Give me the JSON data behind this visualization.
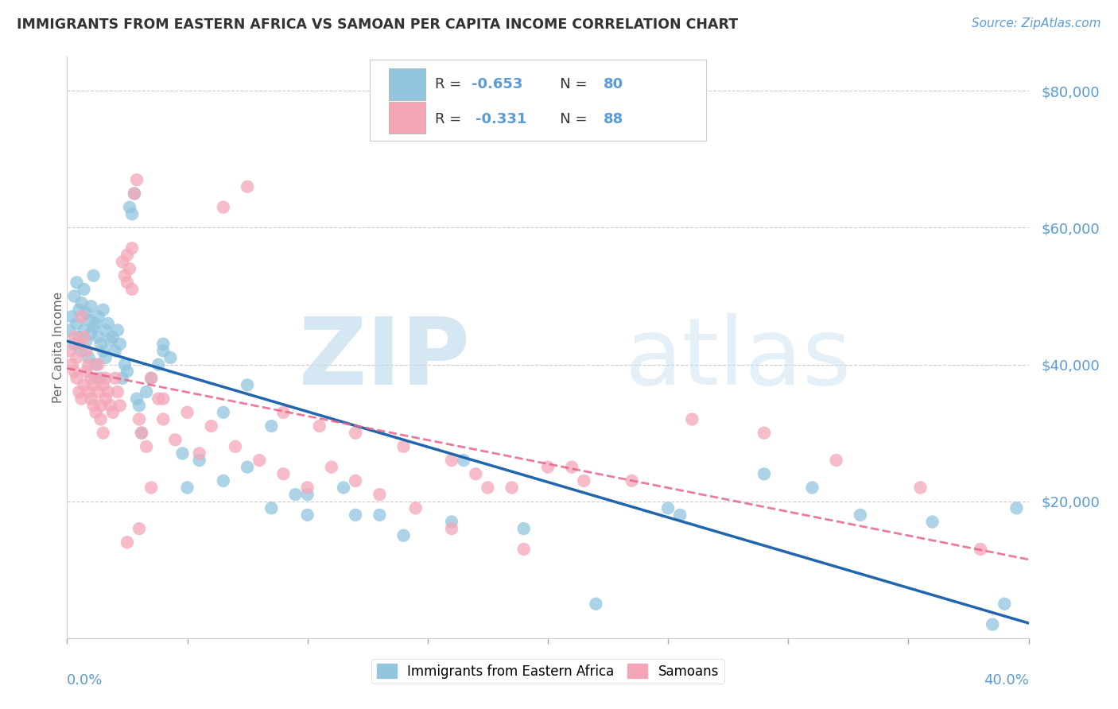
{
  "title": "IMMIGRANTS FROM EASTERN AFRICA VS SAMOAN PER CAPITA INCOME CORRELATION CHART",
  "source": "Source: ZipAtlas.com",
  "ylabel": "Per Capita Income",
  "y_ticks": [
    20000,
    40000,
    60000,
    80000
  ],
  "y_tick_labels": [
    "$20,000",
    "$40,000",
    "$60,000",
    "$80,000"
  ],
  "xlim": [
    0.0,
    0.4
  ],
  "ylim": [
    0,
    85000
  ],
  "blue_color": "#92c5de",
  "pink_color": "#f4a6b8",
  "line_blue": "#2166ac",
  "line_pink": "#e8648a",
  "tick_label_color": "#5b9bd5",
  "background_color": "#ffffff",
  "grid_color": "#cccccc",
  "watermark_color": "#d0e8f8",
  "blue_scatter_x": [
    0.001,
    0.002,
    0.003,
    0.003,
    0.004,
    0.004,
    0.005,
    0.005,
    0.006,
    0.006,
    0.007,
    0.007,
    0.008,
    0.008,
    0.009,
    0.009,
    0.01,
    0.01,
    0.011,
    0.011,
    0.012,
    0.012,
    0.013,
    0.013,
    0.014,
    0.014,
    0.015,
    0.015,
    0.016,
    0.016,
    0.017,
    0.018,
    0.019,
    0.02,
    0.021,
    0.022,
    0.023,
    0.024,
    0.025,
    0.026,
    0.027,
    0.028,
    0.029,
    0.03,
    0.031,
    0.033,
    0.035,
    0.038,
    0.04,
    0.043,
    0.048,
    0.055,
    0.065,
    0.075,
    0.085,
    0.1,
    0.115,
    0.13,
    0.16,
    0.19,
    0.22,
    0.255,
    0.29,
    0.33,
    0.36,
    0.385,
    0.39,
    0.395,
    0.25,
    0.31,
    0.1,
    0.14,
    0.165,
    0.065,
    0.075,
    0.085,
    0.095,
    0.12,
    0.04,
    0.05
  ],
  "blue_scatter_y": [
    45000,
    47000,
    50000,
    43000,
    46000,
    52000,
    44000,
    48000,
    49000,
    42000,
    51000,
    45000,
    47500,
    43500,
    46500,
    41000,
    44500,
    48500,
    45500,
    53000,
    46000,
    40000,
    47000,
    44000,
    43000,
    38000,
    42000,
    48000,
    45000,
    41000,
    46000,
    43500,
    44000,
    42000,
    45000,
    43000,
    38000,
    40000,
    39000,
    63000,
    62000,
    65000,
    35000,
    34000,
    30000,
    36000,
    38000,
    40000,
    42000,
    41000,
    27000,
    26000,
    33000,
    37000,
    31000,
    21000,
    22000,
    18000,
    17000,
    16000,
    5000,
    18000,
    24000,
    18000,
    17000,
    2000,
    5000,
    19000,
    19000,
    22000,
    18000,
    15000,
    26000,
    23000,
    25000,
    19000,
    21000,
    18000,
    43000,
    22000
  ],
  "pink_scatter_x": [
    0.001,
    0.002,
    0.003,
    0.003,
    0.004,
    0.004,
    0.005,
    0.005,
    0.006,
    0.006,
    0.007,
    0.007,
    0.008,
    0.008,
    0.009,
    0.009,
    0.01,
    0.01,
    0.011,
    0.011,
    0.012,
    0.012,
    0.013,
    0.013,
    0.014,
    0.014,
    0.015,
    0.015,
    0.016,
    0.016,
    0.017,
    0.018,
    0.019,
    0.02,
    0.021,
    0.022,
    0.023,
    0.024,
    0.025,
    0.025,
    0.026,
    0.027,
    0.027,
    0.028,
    0.029,
    0.03,
    0.031,
    0.033,
    0.035,
    0.038,
    0.04,
    0.045,
    0.055,
    0.065,
    0.075,
    0.09,
    0.105,
    0.12,
    0.14,
    0.16,
    0.185,
    0.21,
    0.235,
    0.26,
    0.29,
    0.32,
    0.355,
    0.38,
    0.04,
    0.05,
    0.06,
    0.07,
    0.08,
    0.09,
    0.1,
    0.11,
    0.12,
    0.13,
    0.145,
    0.16,
    0.17,
    0.175,
    0.19,
    0.2,
    0.215,
    0.025,
    0.03,
    0.035
  ],
  "pink_scatter_y": [
    42000,
    40000,
    39000,
    44000,
    41000,
    38000,
    43000,
    36000,
    47000,
    35000,
    44000,
    37000,
    42000,
    39000,
    40000,
    36000,
    38000,
    35000,
    34000,
    37000,
    33000,
    38000,
    40000,
    36000,
    34000,
    32000,
    37000,
    30000,
    35000,
    38000,
    36000,
    34000,
    33000,
    38000,
    36000,
    34000,
    55000,
    53000,
    56000,
    52000,
    54000,
    51000,
    57000,
    65000,
    67000,
    32000,
    30000,
    28000,
    38000,
    35000,
    32000,
    29000,
    27000,
    63000,
    66000,
    33000,
    31000,
    30000,
    28000,
    26000,
    22000,
    25000,
    23000,
    32000,
    30000,
    26000,
    22000,
    13000,
    35000,
    33000,
    31000,
    28000,
    26000,
    24000,
    22000,
    25000,
    23000,
    21000,
    19000,
    16000,
    24000,
    22000,
    13000,
    25000,
    23000,
    14000,
    16000,
    22000
  ]
}
